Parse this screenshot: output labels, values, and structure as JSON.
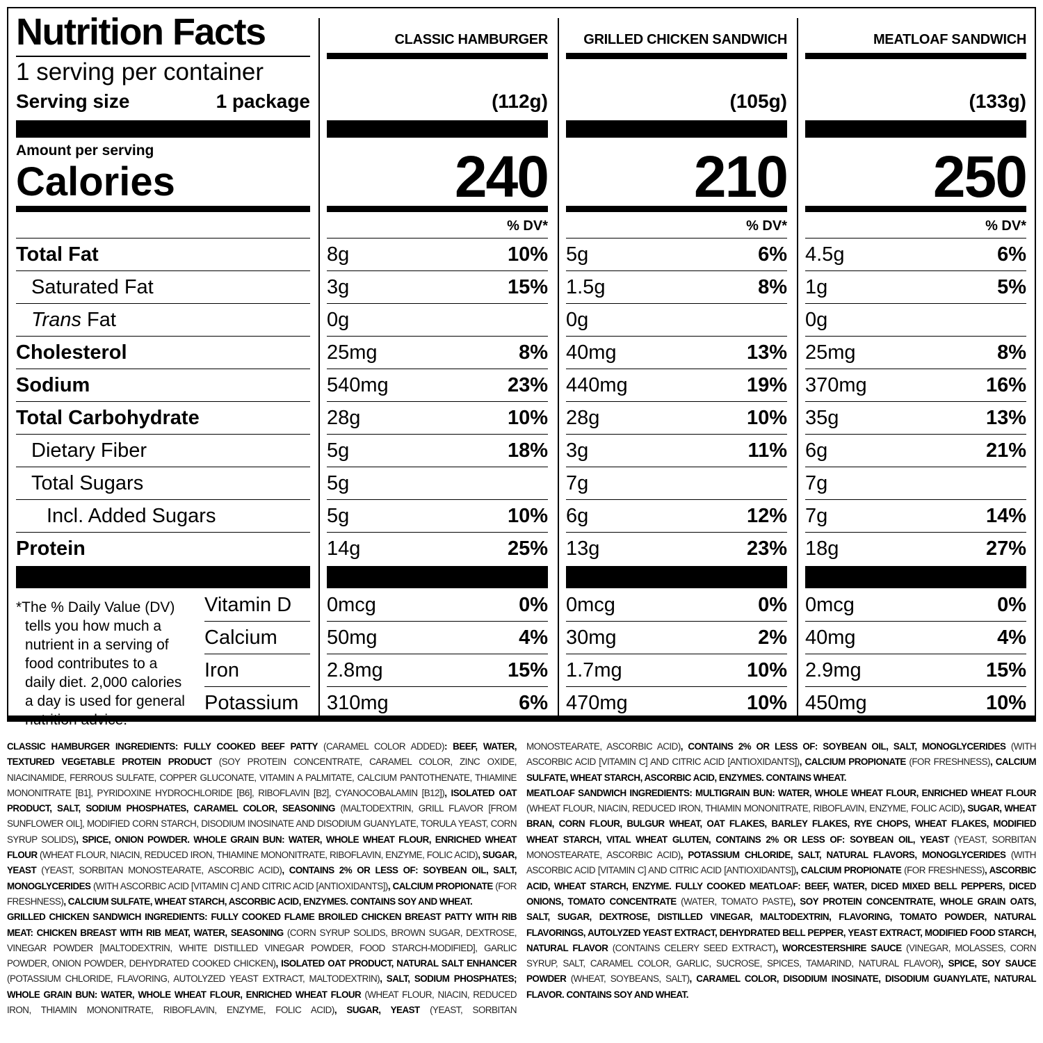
{
  "header": {
    "title": "Nutrition Facts",
    "servings_per_container": "1 serving per container",
    "serving_size_label": "Serving size",
    "serving_size_value": "1 package",
    "amount_per_serving": "Amount per serving",
    "calories_label": "Calories",
    "dv_label": "% DV*"
  },
  "nutrients": [
    {
      "label": "Total Fat",
      "style": "b"
    },
    {
      "label": "Saturated Fat",
      "style": "i1"
    },
    {
      "label_italic": "Trans",
      "label": " Fat",
      "style": "i1"
    },
    {
      "label": "Cholesterol",
      "style": "b"
    },
    {
      "label": "Sodium",
      "style": "b"
    },
    {
      "label": "Total Carbohydrate",
      "style": "b"
    },
    {
      "label": "Dietary Fiber",
      "style": "i1"
    },
    {
      "label": "Total Sugars",
      "style": "i1"
    },
    {
      "label": "Incl. Added Sugars",
      "style": "i2"
    },
    {
      "label": "Protein",
      "style": "b"
    }
  ],
  "vitamins": [
    "Vitamin D",
    "Calcium",
    "Iron",
    "Potassium"
  ],
  "footnote": [
    "*The % Daily Value (DV)",
    "tells you how much a",
    "nutrient in a serving of",
    "food contributes to a",
    "daily diet. 2,000 calories",
    "a day is used for general",
    "nutrition advice."
  ],
  "products": [
    {
      "name": "CLASSIC HAMBURGER",
      "weight": "(112g)",
      "calories": "240",
      "nutrients": [
        {
          "amount": "8g",
          "dv": "10%"
        },
        {
          "amount": "3g",
          "dv": "15%"
        },
        {
          "amount": "0g",
          "dv": ""
        },
        {
          "amount": "25mg",
          "dv": "8%"
        },
        {
          "amount": "540mg",
          "dv": "23%"
        },
        {
          "amount": "28g",
          "dv": "10%"
        },
        {
          "amount": "5g",
          "dv": "18%"
        },
        {
          "amount": "5g",
          "dv": ""
        },
        {
          "amount": "5g",
          "dv": "10%"
        },
        {
          "amount": "14g",
          "dv": "25%"
        }
      ],
      "vitamins": [
        {
          "amount": "0mcg",
          "dv": "0%"
        },
        {
          "amount": "50mg",
          "dv": "4%"
        },
        {
          "amount": "2.8mg",
          "dv": "15%"
        },
        {
          "amount": "310mg",
          "dv": "6%"
        }
      ]
    },
    {
      "name": "GRILLED CHICKEN SANDWICH",
      "weight": "(105g)",
      "calories": "210",
      "nutrients": [
        {
          "amount": "5g",
          "dv": "6%"
        },
        {
          "amount": "1.5g",
          "dv": "8%"
        },
        {
          "amount": "0g",
          "dv": ""
        },
        {
          "amount": "40mg",
          "dv": "13%"
        },
        {
          "amount": "440mg",
          "dv": "19%"
        },
        {
          "amount": "28g",
          "dv": "10%"
        },
        {
          "amount": "3g",
          "dv": "11%"
        },
        {
          "amount": "7g",
          "dv": ""
        },
        {
          "amount": "6g",
          "dv": "12%"
        },
        {
          "amount": "13g",
          "dv": "23%"
        }
      ],
      "vitamins": [
        {
          "amount": "0mcg",
          "dv": "0%"
        },
        {
          "amount": "30mg",
          "dv": "2%"
        },
        {
          "amount": "1.7mg",
          "dv": "10%"
        },
        {
          "amount": "470mg",
          "dv": "10%"
        }
      ]
    },
    {
      "name": "MEATLOAF SANDWICH",
      "weight": "(133g)",
      "calories": "250",
      "nutrients": [
        {
          "amount": "4.5g",
          "dv": "6%"
        },
        {
          "amount": "1g",
          "dv": "5%"
        },
        {
          "amount": "0g",
          "dv": ""
        },
        {
          "amount": "25mg",
          "dv": "8%"
        },
        {
          "amount": "370mg",
          "dv": "16%"
        },
        {
          "amount": "35g",
          "dv": "13%"
        },
        {
          "amount": "6g",
          "dv": "21%"
        },
        {
          "amount": "7g",
          "dv": ""
        },
        {
          "amount": "7g",
          "dv": "14%"
        },
        {
          "amount": "18g",
          "dv": "27%"
        }
      ],
      "vitamins": [
        {
          "amount": "0mcg",
          "dv": "0%"
        },
        {
          "amount": "40mg",
          "dv": "4%"
        },
        {
          "amount": "2.9mg",
          "dv": "15%"
        },
        {
          "amount": "450mg",
          "dv": "10%"
        }
      ]
    }
  ],
  "ingredients": [
    [
      {
        "b": true,
        "t": "CLASSIC HAMBURGER INGREDIENTS: FULLY COOKED BEEF PATTY "
      },
      {
        "b": false,
        "t": "(CARAMEL COLOR ADDED)"
      },
      {
        "b": true,
        "t": ": BEEF, WATER, TEXTURED VEGETABLE PROTEIN PRODUCT "
      },
      {
        "b": false,
        "t": "(SOY PROTEIN CONCENTRATE, CARAMEL COLOR, ZINC OXIDE, NIACINAMIDE, FERROUS SULFATE, COPPER GLUCONATE, VITAMIN A PALMITATE, CALCIUM PANTOTHENATE, THIAMINE MONONITRATE [B1], PYRIDOXINE HYDROCHLORIDE [B6], RIBOFLAVIN [B2], CYANOCOBALAMIN [B12])"
      },
      {
        "b": true,
        "t": ", ISOLATED OAT PRODUCT, SALT, SODIUM PHOSPHATES, CARAMEL COLOR, SEASONING "
      },
      {
        "b": false,
        "t": "(MALTODEXTRIN, GRILL FLAVOR [FROM SUNFLOWER OIL], MODIFIED CORN STARCH, DISODIUM INOSINATE AND DISODIUM GUANYLATE, TORULA YEAST, CORN SYRUP SOLIDS)"
      },
      {
        "b": true,
        "t": ", SPICE, ONION POWDER. WHOLE GRAIN BUN: WATER, WHOLE WHEAT FLOUR, ENRICHED WHEAT FLOUR "
      },
      {
        "b": false,
        "t": "(WHEAT FLOUR, NIACIN, REDUCED IRON, THIAMINE MONONITRATE, RIBOFLAVIN, ENZYME, FOLIC ACID)"
      },
      {
        "b": true,
        "t": ", SUGAR, YEAST "
      },
      {
        "b": false,
        "t": "(YEAST, SORBITAN MONOSTEARATE, ASCORBIC ACID)"
      },
      {
        "b": true,
        "t": ", CONTAINS 2% OR LESS OF: SOYBEAN OIL, SALT, MONOGLYCERIDES "
      },
      {
        "b": false,
        "t": "(WITH ASCORBIC ACID [VITAMIN C] AND CITRIC ACID [ANTIOXIDANTS])"
      },
      {
        "b": true,
        "t": ", CALCIUM PROPIONATE "
      },
      {
        "b": false,
        "t": "(FOR FRESHNESS)"
      },
      {
        "b": true,
        "t": ", CALCIUM SULFATE, WHEAT STARCH, ASCORBIC ACID, ENZYMES. CONTAINS SOY AND WHEAT."
      }
    ],
    [
      {
        "b": true,
        "t": "GRILLED CHICKEN SANDWICH INGREDIENTS: FULLY COOKED FLAME BROILED CHICKEN BREAST PATTY WITH RIB MEAT: CHICKEN BREAST WITH RIB MEAT, WATER, SEASONING "
      },
      {
        "b": false,
        "t": "(CORN SYRUP SOLIDS, BROWN SUGAR, DEXTROSE, VINEGAR POWDER [MALTODEXTRIN, WHITE DISTILLED VINEGAR POWDER, FOOD STARCH-MODIFIED], GARLIC POWDER, ONION POWDER, DEHYDRATED COOKED CHICKEN)"
      },
      {
        "b": true,
        "t": ", ISOLATED OAT PRODUCT, NATURAL SALT ENHANCER "
      },
      {
        "b": false,
        "t": "(POTASSIUM CHLORIDE, FLAVORING, AUTOLYZED YEAST EXTRACT, MALTODEXTRIN)"
      },
      {
        "b": true,
        "t": ", SALT, SODIUM PHOSPHATES; WHOLE GRAIN BUN: WATER, WHOLE WHEAT FLOUR, ENRICHED WHEAT FLOUR "
      },
      {
        "b": false,
        "t": "(WHEAT FLOUR, NIACIN, REDUCED IRON, THIAMIN MONONITRATE, RIBOFLAVIN, ENZYME, FOLIC ACID)"
      },
      {
        "b": true,
        "t": ", SUGAR, YEAST "
      },
      {
        "b": false,
        "t": "(YEAST, SORBITAN MONOSTEARATE, ASCORBIC ACID)"
      },
      {
        "b": true,
        "t": ", CONTAINS 2% OR LESS OF: SOYBEAN OIL, SALT, MONOGLYCERIDES "
      },
      {
        "b": false,
        "t": "(WITH ASCORBIC ACID [VITAMIN C] AND CITRIC ACID [ANTIOXIDANTS])"
      },
      {
        "b": true,
        "t": ", CALCIUM PROPIONATE "
      },
      {
        "b": false,
        "t": "(FOR FRESHNESS)"
      },
      {
        "b": true,
        "t": ", CALCIUM SULFATE, WHEAT STARCH, ASCORBIC ACID, ENZYMES. CONTAINS WHEAT."
      }
    ],
    [
      {
        "b": true,
        "t": "MEATLOAF SANDWICH INGREDIENTS: MULTIGRAIN BUN: WATER, WHOLE WHEAT FLOUR, ENRICHED WHEAT FLOUR "
      },
      {
        "b": false,
        "t": "(WHEAT FLOUR, NIACIN, REDUCED IRON, THIAMIN MONONITRATE, RIBOFLAVIN, ENZYME, FOLIC ACID)"
      },
      {
        "b": true,
        "t": ", SUGAR, WHEAT BRAN, CORN FLOUR, BULGUR WHEAT, OAT FLAKES, BARLEY FLAKES, RYE CHOPS, WHEAT FLAKES, MODIFIED WHEAT STARCH, VITAL WHEAT GLUTEN, CONTAINS 2% OR LESS OF: SOYBEAN OIL, YEAST "
      },
      {
        "b": false,
        "t": "(YEAST, SORBITAN MONOSTEARATE, ASCORBIC ACID)"
      },
      {
        "b": true,
        "t": ", POTASSIUM CHLORIDE, SALT, NATURAL FLAVORS, MONOGLYCERIDES "
      },
      {
        "b": false,
        "t": "(WITH ASCORBIC ACID [VITAMIN C] AND CITRIC ACID [ANTIOXIDANTS])"
      },
      {
        "b": true,
        "t": ", CALCIUM PROPIONATE "
      },
      {
        "b": false,
        "t": "(FOR FRESHNESS)"
      },
      {
        "b": true,
        "t": ", ASCORBIC ACID, WHEAT STARCH, ENZYME. FULLY COOKED MEATLOAF: BEEF, WATER, DICED MIXED BELL PEPPERS, DICED ONIONS, TOMATO CONCENTRATE "
      },
      {
        "b": false,
        "t": "(WATER, TOMATO PASTE)"
      },
      {
        "b": true,
        "t": ", SOY PROTEIN CONCENTRATE, WHOLE GRAIN OATS, SALT, SUGAR, DEXTROSE, DISTILLED VINEGAR, MALTODEXTRIN, FLAVORING, TOMATO POWDER, NATURAL FLAVORINGS, AUTOLYZED YEAST EXTRACT, DEHYDRATED BELL PEPPER, YEAST EXTRACT, MODIFIED FOOD STARCH, NATURAL FLAVOR "
      },
      {
        "b": false,
        "t": "(CONTAINS CELERY SEED EXTRACT)"
      },
      {
        "b": true,
        "t": ", WORCESTERSHIRE SAUCE "
      },
      {
        "b": false,
        "t": "(VINEGAR, MOLASSES, CORN SYRUP, SALT, CARAMEL COLOR, GARLIC, SUCROSE, SPICES, TAMARIND, NATURAL FLAVOR)"
      },
      {
        "b": true,
        "t": ", SPICE, SOY SAUCE POWDER "
      },
      {
        "b": false,
        "t": "(WHEAT, SOYBEANS, SALT)"
      },
      {
        "b": true,
        "t": ", CARAMEL COLOR, DISODIUM INOSINATE, DISODIUM GUANYLATE, NATURAL FLAVOR. CONTAINS SOY AND WHEAT."
      }
    ]
  ]
}
